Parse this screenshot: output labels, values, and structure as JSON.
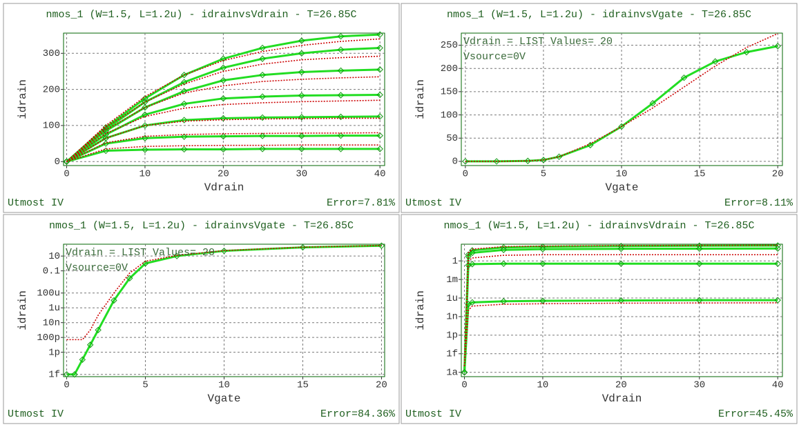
{
  "chart_data": [
    {
      "type": "line",
      "title": "nmos_1 (W=1.5, L=1.2u) - idrainvsVdrain - T=26.85C",
      "xlabel": "Vdrain",
      "ylabel": "idrain",
      "footer_left": "Utmost IV",
      "footer_right": "Error=7.81%",
      "x": [
        0,
        5,
        10,
        15,
        20,
        25,
        30,
        35,
        40
      ],
      "xlim": [
        -0.4,
        40.6
      ],
      "xticks": [
        0,
        10,
        20,
        30,
        40
      ],
      "ylim": [
        -11,
        356
      ],
      "yticks": [
        0,
        100,
        200,
        300
      ],
      "log": false,
      "grid": true,
      "series": [
        {
          "color": "#22dd22",
          "marker": "diamond",
          "values": [
            0,
            95,
            175,
            240,
            285,
            315,
            335,
            347,
            352
          ]
        },
        {
          "color": "#22dd22",
          "marker": "diamond",
          "values": [
            0,
            90,
            165,
            220,
            260,
            285,
            300,
            310,
            315
          ]
        },
        {
          "color": "#22dd22",
          "marker": "diamond",
          "values": [
            0,
            85,
            150,
            195,
            225,
            240,
            248,
            252,
            255
          ]
        },
        {
          "color": "#22dd22",
          "marker": "diamond",
          "values": [
            0,
            75,
            130,
            160,
            175,
            180,
            183,
            184,
            185
          ]
        },
        {
          "color": "#22dd22",
          "marker": "diamond",
          "values": [
            0,
            65,
            100,
            115,
            120,
            122,
            123,
            124,
            125
          ]
        },
        {
          "color": "#22dd22",
          "marker": "diamond",
          "values": [
            0,
            50,
            65,
            69,
            70,
            71,
            71,
            72,
            72
          ]
        },
        {
          "color": "#22dd22",
          "marker": "diamond",
          "values": [
            0,
            30,
            33,
            34,
            34,
            35,
            35,
            35,
            35
          ]
        },
        {
          "color": "#cc0000",
          "dashed": true,
          "values": [
            0,
            100,
            180,
            240,
            280,
            305,
            322,
            333,
            340
          ]
        },
        {
          "color": "#cc0000",
          "dashed": true,
          "values": [
            0,
            95,
            165,
            215,
            250,
            270,
            282,
            288,
            292
          ]
        },
        {
          "color": "#cc0000",
          "dashed": true,
          "values": [
            0,
            88,
            150,
            190,
            210,
            222,
            228,
            232,
            235
          ]
        },
        {
          "color": "#cc0000",
          "dashed": true,
          "values": [
            0,
            78,
            125,
            148,
            158,
            163,
            166,
            168,
            170
          ]
        },
        {
          "color": "#cc0000",
          "dashed": true,
          "values": [
            0,
            65,
            100,
            112,
            116,
            118,
            119,
            120,
            120
          ]
        },
        {
          "color": "#cc0000",
          "dashed": true,
          "values": [
            0,
            52,
            70,
            75,
            77,
            78,
            79,
            79,
            80
          ]
        },
        {
          "color": "#cc0000",
          "dashed": true,
          "values": [
            0,
            35,
            42,
            44,
            45,
            45,
            46,
            46,
            46
          ]
        }
      ]
    },
    {
      "type": "line",
      "title": "nmos_1 (W=1.5, L=1.2u) - idrainvsVgate - T=26.85C",
      "xlabel": "Vgate",
      "ylabel": "idrain",
      "footer_left": "Utmost IV",
      "footer_right": "Error=8.11%",
      "annotations": [
        "Vdrain = LIST Values= 20",
        "Vsource=0V"
      ],
      "x": [
        0,
        2,
        4,
        5,
        6,
        8,
        10,
        12,
        14,
        16,
        18,
        20
      ],
      "xlim": [
        -0.26,
        20.3
      ],
      "xticks": [
        0,
        5,
        10,
        15,
        20
      ],
      "ylim": [
        -9,
        276
      ],
      "yticks": [
        0,
        50,
        100,
        150,
        200,
        250
      ],
      "log": false,
      "grid": true,
      "series": [
        {
          "color": "#22dd22",
          "marker": "diamond",
          "values": [
            0,
            0,
            1,
            3,
            10,
            35,
            75,
            125,
            180,
            215,
            235,
            248
          ]
        },
        {
          "color": "#cc0000",
          "dashed": true,
          "values": [
            0,
            0,
            1,
            3,
            10,
            38,
            75,
            115,
            160,
            205,
            245,
            275
          ]
        }
      ]
    },
    {
      "type": "line",
      "title": "nmos_1 (W=1.5, L=1.2u) - idrainvsVgate - T=26.85C",
      "xlabel": "Vgate",
      "ylabel": "idrain",
      "footer_left": "Utmost IV",
      "footer_right": "Error=84.36%",
      "annotations": [
        "Vdrain = LIST Values= 20",
        "Vsource=0V"
      ],
      "x": [
        0,
        0.5,
        1,
        1.5,
        2,
        3,
        4,
        5,
        7,
        10,
        15,
        20
      ],
      "xlim": [
        -0.2,
        20.2
      ],
      "xticks": [
        0,
        5,
        10,
        15,
        20
      ],
      "ylim": [
        5e-16,
        400
      ],
      "yticks": [
        10,
        0.1,
        {
          "value": 0.0001,
          "label": "100u"
        },
        {
          "value": 1e-06,
          "label": "1u"
        },
        {
          "value": 1e-08,
          "label": "10n"
        },
        {
          "value": 1e-10,
          "label": "100p"
        },
        {
          "value": 1e-12,
          "label": "1p"
        },
        {
          "value": 1e-15,
          "label": "1f"
        }
      ],
      "log": true,
      "grid": true,
      "series": [
        {
          "color": "#22dd22",
          "marker": "diamond",
          "values": [
            1e-15,
            1e-15,
            1e-13,
            1e-11,
            1e-09,
            1e-05,
            0.01,
            1,
            10,
            50,
            150,
            250
          ]
        },
        {
          "color": "#cc0000",
          "dashed": true,
          "values": [
            5e-11,
            5e-11,
            5e-11,
            1e-09,
            1e-07,
            0.0001,
            0.05,
            2,
            12,
            55,
            160,
            270
          ]
        }
      ]
    },
    {
      "type": "line",
      "title": "nmos_1 (W=1.5, L=1.2u) - idrainvsVdrain - T=26.85C",
      "xlabel": "Vdrain",
      "ylabel": "idrain",
      "footer_left": "Utmost IV",
      "footer_right": "Error=45.45%",
      "x": [
        0,
        0.5,
        1,
        5,
        10,
        20,
        30,
        40
      ],
      "xlim": [
        -0.4,
        40.6
      ],
      "xticks": [
        0,
        10,
        20,
        30,
        40
      ],
      "ylim": [
        2e-19,
        500
      ],
      "yticks": [
        1,
        {
          "value": 0.001,
          "label": "1m"
        },
        {
          "value": 1e-06,
          "label": "1u"
        },
        {
          "value": 1e-09,
          "label": "1n"
        },
        {
          "value": 1e-12,
          "label": "1p"
        },
        {
          "value": 1e-15,
          "label": "1f"
        },
        {
          "value": 1e-18,
          "label": "1a"
        }
      ],
      "log": true,
      "grid": true,
      "series": [
        {
          "color": "#22dd22",
          "marker": "diamond",
          "values": [
            1e-18,
            10,
            50,
            150,
            200,
            250,
            280,
            300
          ]
        },
        {
          "color": "#22dd22",
          "marker": "diamond",
          "values": [
            1e-18,
            5,
            20,
            60,
            80,
            90,
            95,
            100
          ]
        },
        {
          "color": "#22dd22",
          "marker": "diamond",
          "values": [
            1e-18,
            0.2,
            0.3,
            0.35,
            0.35,
            0.35,
            0.35,
            0.35
          ]
        },
        {
          "color": "#22dd22",
          "marker": "diamond",
          "values": [
            1e-18,
            1e-07,
            2e-07,
            3e-07,
            3.5e-07,
            4e-07,
            4.5e-07,
            4.5e-07
          ]
        },
        {
          "color": "#cc0000",
          "dashed": true,
          "values": [
            1e-17,
            20,
            80,
            200,
            250,
            300,
            320,
            340
          ]
        },
        {
          "color": "#cc0000",
          "dashed": true,
          "values": [
            1e-17,
            1,
            3,
            8,
            10,
            10,
            10,
            10
          ]
        },
        {
          "color": "#cc0000",
          "dashed": true,
          "values": [
            1e-17,
            1e-08,
            5e-08,
            1e-07,
            1.2e-07,
            1.5e-07,
            1.6e-07,
            1.7e-07
          ]
        }
      ]
    }
  ]
}
